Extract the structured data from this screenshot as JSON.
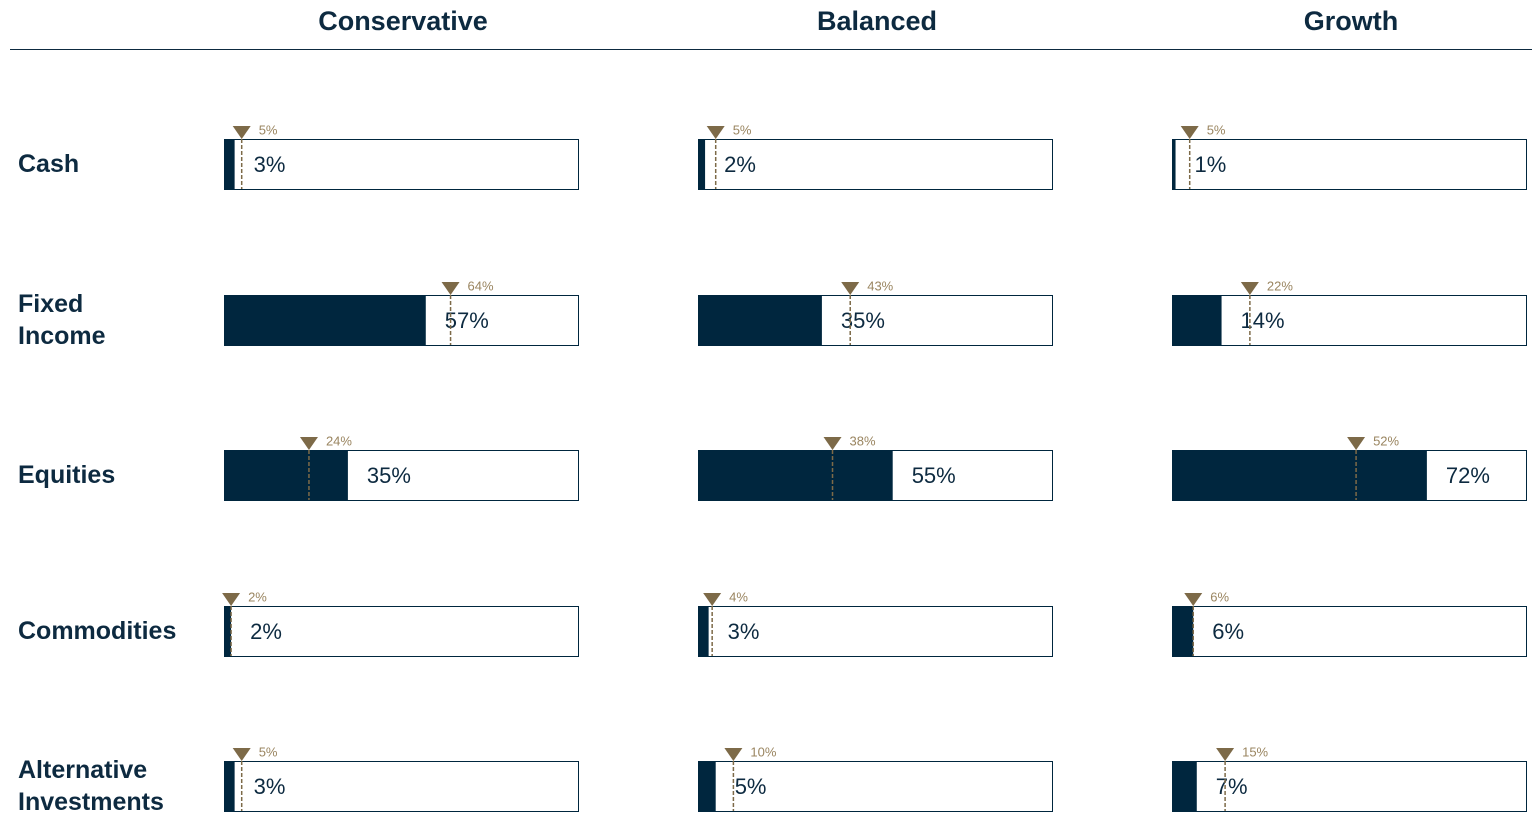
{
  "chart_data": {
    "type": "bar",
    "categories": [
      "Cash",
      "Fixed Income",
      "Equities",
      "Commodities",
      "Alternative Investments"
    ],
    "xlim": [
      0,
      100
    ],
    "color": "#00263e",
    "target_color": "#7d6a48",
    "series": [
      {
        "name": "Conservative",
        "values": [
          3,
          57,
          35,
          2,
          3
        ],
        "value_labels": [
          "3%",
          "57%",
          "35%",
          "2%",
          "3%"
        ],
        "targets": [
          5,
          64,
          24,
          2,
          5
        ],
        "target_labels": [
          "5%",
          "64%",
          "24%",
          "2%",
          "5%"
        ]
      },
      {
        "name": "Balanced",
        "values": [
          2,
          35,
          55,
          3,
          5
        ],
        "value_labels": [
          "2%",
          "35%",
          "55%",
          "3%",
          "5%"
        ],
        "targets": [
          5,
          43,
          38,
          4,
          10
        ],
        "target_labels": [
          "5%",
          "43%",
          "38%",
          "4%",
          "10%"
        ]
      },
      {
        "name": "Growth",
        "values": [
          1,
          14,
          72,
          6,
          7
        ],
        "value_labels": [
          "1%",
          "14%",
          "72%",
          "6%",
          "7%"
        ],
        "targets": [
          5,
          22,
          52,
          6,
          15
        ],
        "target_labels": [
          "5%",
          "22%",
          "52%",
          "6%",
          "15%"
        ]
      }
    ]
  }
}
